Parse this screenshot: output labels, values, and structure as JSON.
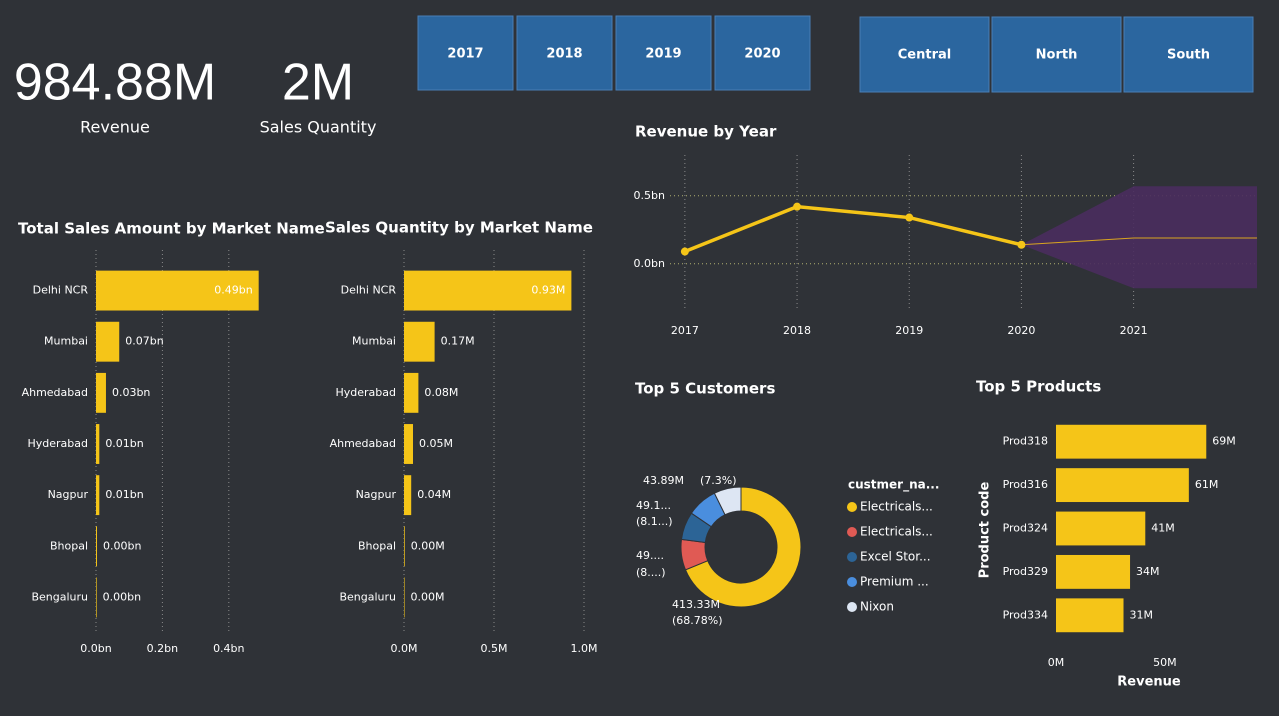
{
  "kpis": [
    {
      "value": "984.88M",
      "label": "Revenue"
    },
    {
      "value": "2M",
      "label": "Sales Quantity"
    }
  ],
  "year_buttons": [
    "2017",
    "2018",
    "2019",
    "2020"
  ],
  "zone_buttons": [
    "Central",
    "North",
    "South"
  ],
  "chart_data": [
    {
      "type": "bar",
      "orientation": "horizontal",
      "title": "Total Sales Amount by Market Name",
      "categories": [
        "Delhi NCR",
        "Mumbai",
        "Ahmedabad",
        "Hyderabad",
        "Nagpur",
        "Bhopal",
        "Bengaluru"
      ],
      "values": [
        0.49,
        0.07,
        0.03,
        0.01,
        0.01,
        0.003,
        0.002
      ],
      "value_labels": [
        "0.49bn",
        "0.07bn",
        "0.03bn",
        "0.01bn",
        "0.01bn",
        "0.00bn",
        "0.00bn"
      ],
      "color": "#f5c518",
      "xlim": [
        0,
        0.5
      ],
      "xticks": [
        {
          "value": 0,
          "label": "0.0bn"
        },
        {
          "value": 0.2,
          "label": "0.2bn"
        },
        {
          "value": 0.4,
          "label": "0.4bn"
        }
      ],
      "grid": true
    },
    {
      "type": "bar",
      "orientation": "horizontal",
      "title": "Sales Quantity by Market Name",
      "categories": [
        "Delhi NCR",
        "Mumbai",
        "Hyderabad",
        "Ahmedabad",
        "Nagpur",
        "Bhopal",
        "Bengaluru"
      ],
      "values": [
        0.93,
        0.17,
        0.08,
        0.05,
        0.04,
        0.004,
        0.003
      ],
      "value_labels": [
        "0.93M",
        "0.17M",
        "0.08M",
        "0.05M",
        "0.04M",
        "0.00M",
        "0.00M"
      ],
      "color": "#f5c518",
      "xlim": [
        0,
        1.0
      ],
      "xticks": [
        {
          "value": 0,
          "label": "0.0M"
        },
        {
          "value": 0.5,
          "label": "0.5M"
        },
        {
          "value": 1.0,
          "label": "1.0M"
        }
      ],
      "grid": true
    },
    {
      "type": "line",
      "title": "Revenue by Year",
      "x": [
        2017,
        2018,
        2019,
        2020
      ],
      "values": [
        0.09,
        0.42,
        0.34,
        0.14
      ],
      "color": "#f5c518",
      "forecast": {
        "x": [
          2020,
          2021,
          2022.1
        ],
        "values": [
          0.14,
          0.19,
          0.19
        ],
        "upper": [
          0.14,
          0.57,
          0.57
        ],
        "lower": [
          0.14,
          -0.18,
          -0.18
        ],
        "color": "#d9a520",
        "band_color": "#4a2c5e"
      },
      "xlim": [
        2016.6,
        2022.1
      ],
      "xticks": [
        2017,
        2018,
        2019,
        2020,
        2021
      ],
      "ylim": [
        -0.34,
        0.8
      ],
      "yticks": [
        {
          "value": 0,
          "label": "0.0bn"
        },
        {
          "value": 0.5,
          "label": "0.5bn"
        }
      ],
      "grid": true
    },
    {
      "type": "donut",
      "title": "Top 5 Customers",
      "legend_title": "custmer_na...",
      "categories": [
        "Electricals...",
        "Electricals...",
        "Excel Stor...",
        "Premium ...",
        "Nixon"
      ],
      "values": [
        413.33,
        49.5,
        45.1,
        49.1,
        43.89
      ],
      "value_labels": [
        "413.33M",
        "49....",
        null,
        "49.1...",
        "43.89M"
      ],
      "percent_labels": [
        "(68.78%)",
        "(8....)",
        null,
        "(8.1...)",
        "(7.3%)"
      ],
      "colors": [
        "#f5c518",
        "#e05a54",
        "#2c6496",
        "#4a8ede",
        "#dde6f3"
      ]
    },
    {
      "type": "bar",
      "orientation": "horizontal",
      "title": "Top 5 Products",
      "categories": [
        "Prod318",
        "Prod316",
        "Prod324",
        "Prod329",
        "Prod334"
      ],
      "values": [
        69,
        61,
        41,
        34,
        31
      ],
      "value_labels": [
        "69M",
        "61M",
        "41M",
        "34M",
        "31M"
      ],
      "color": "#f5c518",
      "xlim": [
        0,
        90
      ],
      "xticks": [
        {
          "value": 0,
          "label": "0M"
        },
        {
          "value": 50,
          "label": "50M"
        }
      ],
      "grid": false,
      "x_label": "Revenue",
      "y_label": "Product code"
    }
  ]
}
